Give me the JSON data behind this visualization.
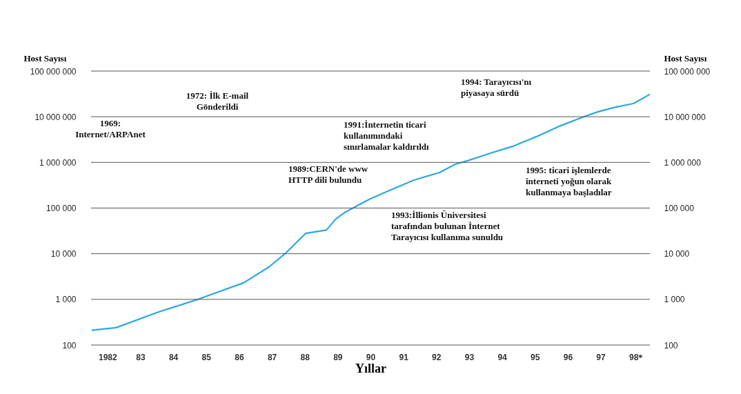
{
  "chart_data": {
    "type": "line",
    "xlabel": "Yıllar",
    "ylabel": "Host Sayısı",
    "y2label": "Host Sayısı",
    "log": "y",
    "grid": "y",
    "x": [
      1981.52,
      1982.26,
      1983.56,
      1984.75,
      1986.14,
      1986.91,
      1987.4,
      1988.03,
      1988.66,
      1988.95,
      1989.22,
      1989.64,
      1990.0,
      1990.48,
      1991.32,
      1992.1,
      1992.58,
      1992.94,
      1993.63,
      1994.32,
      1995.04,
      1995.73,
      1996.57,
      1996.93,
      1997.47,
      1998.0,
      1998.5
    ],
    "series": [
      {
        "color": "#29a8e0",
        "values": [
          210,
          240,
          530,
          1000,
          2300,
          5100,
          10000,
          28000,
          33000,
          58000,
          80000,
          117000,
          160000,
          226000,
          410000,
          600000,
          910000,
          1080000,
          1580000,
          2240000,
          3650000,
          6150000,
          10500000,
          12900000,
          16300000,
          19500000,
          31000000
        ]
      }
    ],
    "xlim": [
      1981.5,
      1998.5
    ],
    "xticks": [
      {
        "value": 1982,
        "label": "1982"
      },
      {
        "value": 1983,
        "label": "83"
      },
      {
        "value": 1984,
        "label": "84"
      },
      {
        "value": 1985,
        "label": "85"
      },
      {
        "value": 1986,
        "label": "86"
      },
      {
        "value": 1987,
        "label": "87"
      },
      {
        "value": 1988,
        "label": "88"
      },
      {
        "value": 1989,
        "label": "89"
      },
      {
        "value": 1990,
        "label": "90"
      },
      {
        "value": 1991,
        "label": "91"
      },
      {
        "value": 1992,
        "label": "92"
      },
      {
        "value": 1993,
        "label": "93"
      },
      {
        "value": 1994,
        "label": "94"
      },
      {
        "value": 1995,
        "label": "95"
      },
      {
        "value": 1996,
        "label": "96"
      },
      {
        "value": 1997,
        "label": "97"
      },
      {
        "value": 1998,
        "label": "98"
      }
    ],
    "ylim": [
      100,
      100000000
    ],
    "yticks": [
      {
        "value": 100,
        "label": "100"
      },
      {
        "value": 1000,
        "label": "1 000"
      },
      {
        "value": 10000,
        "label": "10 000"
      },
      {
        "value": 100000,
        "label": "100 000"
      },
      {
        "value": 1000000,
        "label": "1 000 000"
      },
      {
        "value": 10000000,
        "label": "10 000 000"
      },
      {
        "value": 100000000,
        "label": "100 000 000"
      }
    ],
    "annotations": [
      "1969: Internet/ARPAnet",
      "1972: İlk E-mail Gönderildi",
      "1991:İnternetin ticari kullanımındaki sınırlamalar kaldırıldı",
      "1989:CERN'de www HTTP dili bulundu",
      "1993:İllionis Üniversitesi tarafından bulunan İnternet Tarayıcısı kullanıma sunuldu",
      "1994: Tarayıcısı'nı piyasaya sürdü",
      "1995: ticari işlemlerde interneti yoğun olarak kullanmaya başladılar",
      "*"
    ]
  }
}
